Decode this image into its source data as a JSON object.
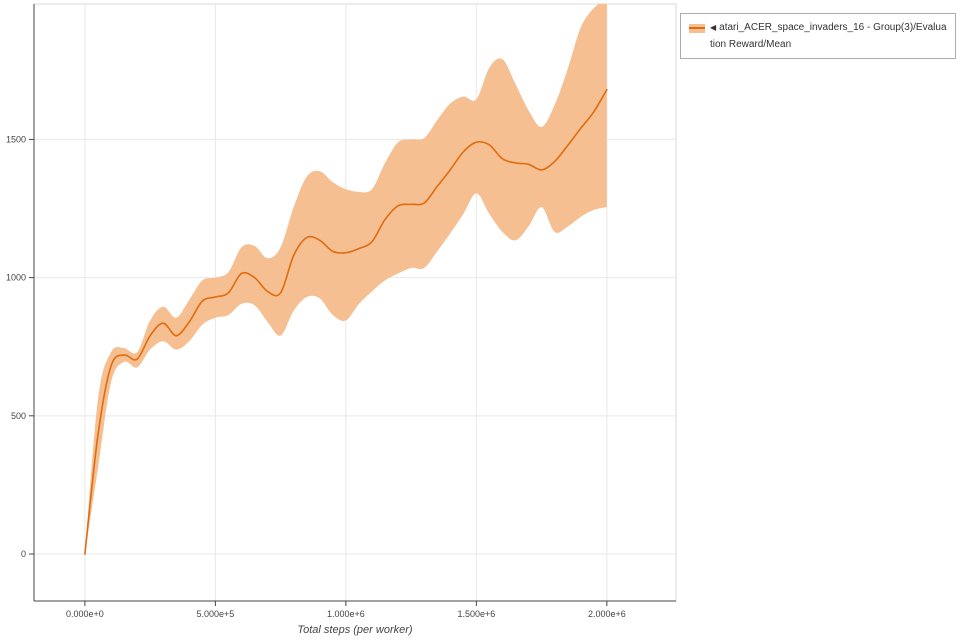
{
  "theme": {
    "background": "#ffffff",
    "grid_color": "#e8e8e8",
    "outline_color": "#dadada",
    "axis_color": "#444444",
    "tick_label_color": "#444444",
    "axis_label_color": "#444444"
  },
  "legend": {
    "collapse_symbol": "◀",
    "series_label": "atari_ACER_space_invaders_16 - Group(3)/Evaluation Reward/Mean"
  },
  "chart_data": {
    "type": "line",
    "title": "",
    "xlabel": "Total steps (per worker)",
    "ylabel": "",
    "xlim": [
      -195000,
      2265000
    ],
    "ylim": [
      -170,
      1990
    ],
    "grid": true,
    "legend_position": "outside-top-right",
    "x_ticks": [
      {
        "value": 0,
        "label": "0.000e+0"
      },
      {
        "value": 500000,
        "label": "5.000e+5"
      },
      {
        "value": 1000000,
        "label": "1.000e+6"
      },
      {
        "value": 1500000,
        "label": "1.500e+6"
      },
      {
        "value": 2000000,
        "label": "2.000e+6"
      }
    ],
    "y_ticks": [
      {
        "value": 0,
        "label": "0"
      },
      {
        "value": 500,
        "label": "500"
      },
      {
        "value": 1000,
        "label": "1000"
      },
      {
        "value": 1500,
        "label": "1500"
      }
    ],
    "series": [
      {
        "name": "atari_ACER_space_invaders_16 - Group(3)/Evaluation Reward/Mean",
        "color": "#e06c0f",
        "band_color": "#f5bf91",
        "x": [
          0,
          50000,
          100000,
          150000,
          200000,
          250000,
          300000,
          350000,
          400000,
          450000,
          500000,
          550000,
          600000,
          650000,
          700000,
          750000,
          800000,
          850000,
          900000,
          950000,
          1000000,
          1050000,
          1100000,
          1150000,
          1200000,
          1250000,
          1300000,
          1350000,
          1400000,
          1450000,
          1500000,
          1550000,
          1600000,
          1650000,
          1700000,
          1750000,
          1800000,
          1850000,
          1900000,
          1950000,
          2000000
        ],
        "mean": [
          0,
          430,
          680,
          720,
          705,
          790,
          835,
          790,
          840,
          915,
          930,
          945,
          1015,
          1000,
          950,
          945,
          1080,
          1145,
          1135,
          1095,
          1090,
          1105,
          1130,
          1210,
          1260,
          1265,
          1270,
          1330,
          1390,
          1455,
          1490,
          1480,
          1430,
          1415,
          1410,
          1390,
          1420,
          1478,
          1540,
          1600,
          1680
        ],
        "lower": [
          0,
          310,
          620,
          695,
          675,
          740,
          770,
          740,
          770,
          830,
          855,
          865,
          905,
          900,
          840,
          790,
          880,
          930,
          925,
          865,
          845,
          905,
          950,
          990,
          1015,
          1035,
          1035,
          1095,
          1160,
          1230,
          1305,
          1230,
          1165,
          1135,
          1185,
          1255,
          1165,
          1185,
          1220,
          1245,
          1255
        ],
        "upper": [
          0,
          560,
          730,
          745,
          730,
          845,
          895,
          855,
          920,
          990,
          1000,
          1020,
          1110,
          1115,
          1070,
          1110,
          1255,
          1365,
          1385,
          1345,
          1320,
          1310,
          1320,
          1415,
          1490,
          1500,
          1505,
          1570,
          1630,
          1655,
          1645,
          1760,
          1790,
          1700,
          1605,
          1545,
          1625,
          1755,
          1905,
          1975,
          2010
        ]
      }
    ]
  }
}
